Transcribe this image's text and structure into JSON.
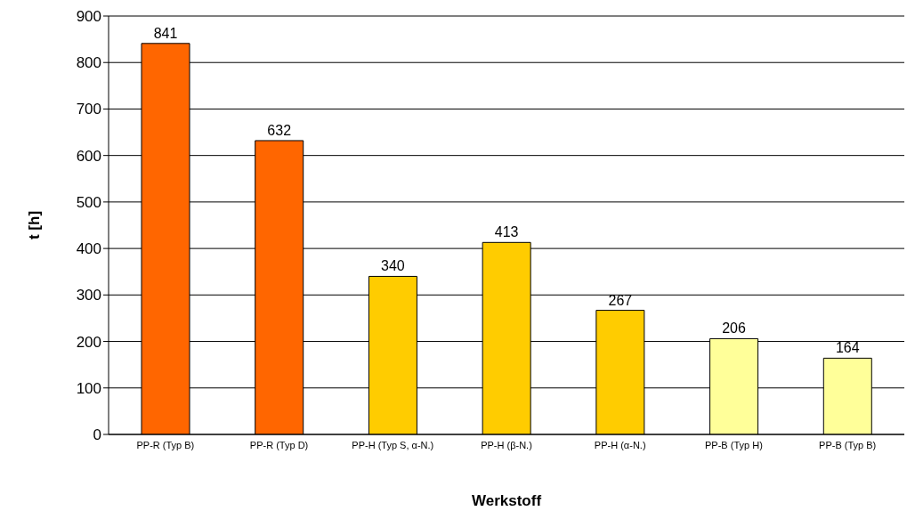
{
  "chart_data": {
    "type": "bar",
    "xlabel": "Werkstoff",
    "ylabel": "t [h]",
    "categories": [
      "PP-R (Typ B)",
      "PP-R (Typ D)",
      "PP-H (Typ S, α-N.)",
      "PP-H (β-N.)",
      "PP-H (α-N.)",
      "PP-B (Typ H)",
      "PP-B (Typ B)"
    ],
    "values": [
      841,
      632,
      340,
      413,
      267,
      206,
      164
    ],
    "colors": [
      "#ff6600",
      "#ff6600",
      "#ffcc00",
      "#ffcc00",
      "#ffcc00",
      "#ffff99",
      "#ffff99"
    ],
    "ylim": [
      0,
      900
    ],
    "yticks": [
      0,
      100,
      200,
      300,
      400,
      500,
      600,
      700,
      800,
      900
    ],
    "grid": "y",
    "data_labels": true
  }
}
